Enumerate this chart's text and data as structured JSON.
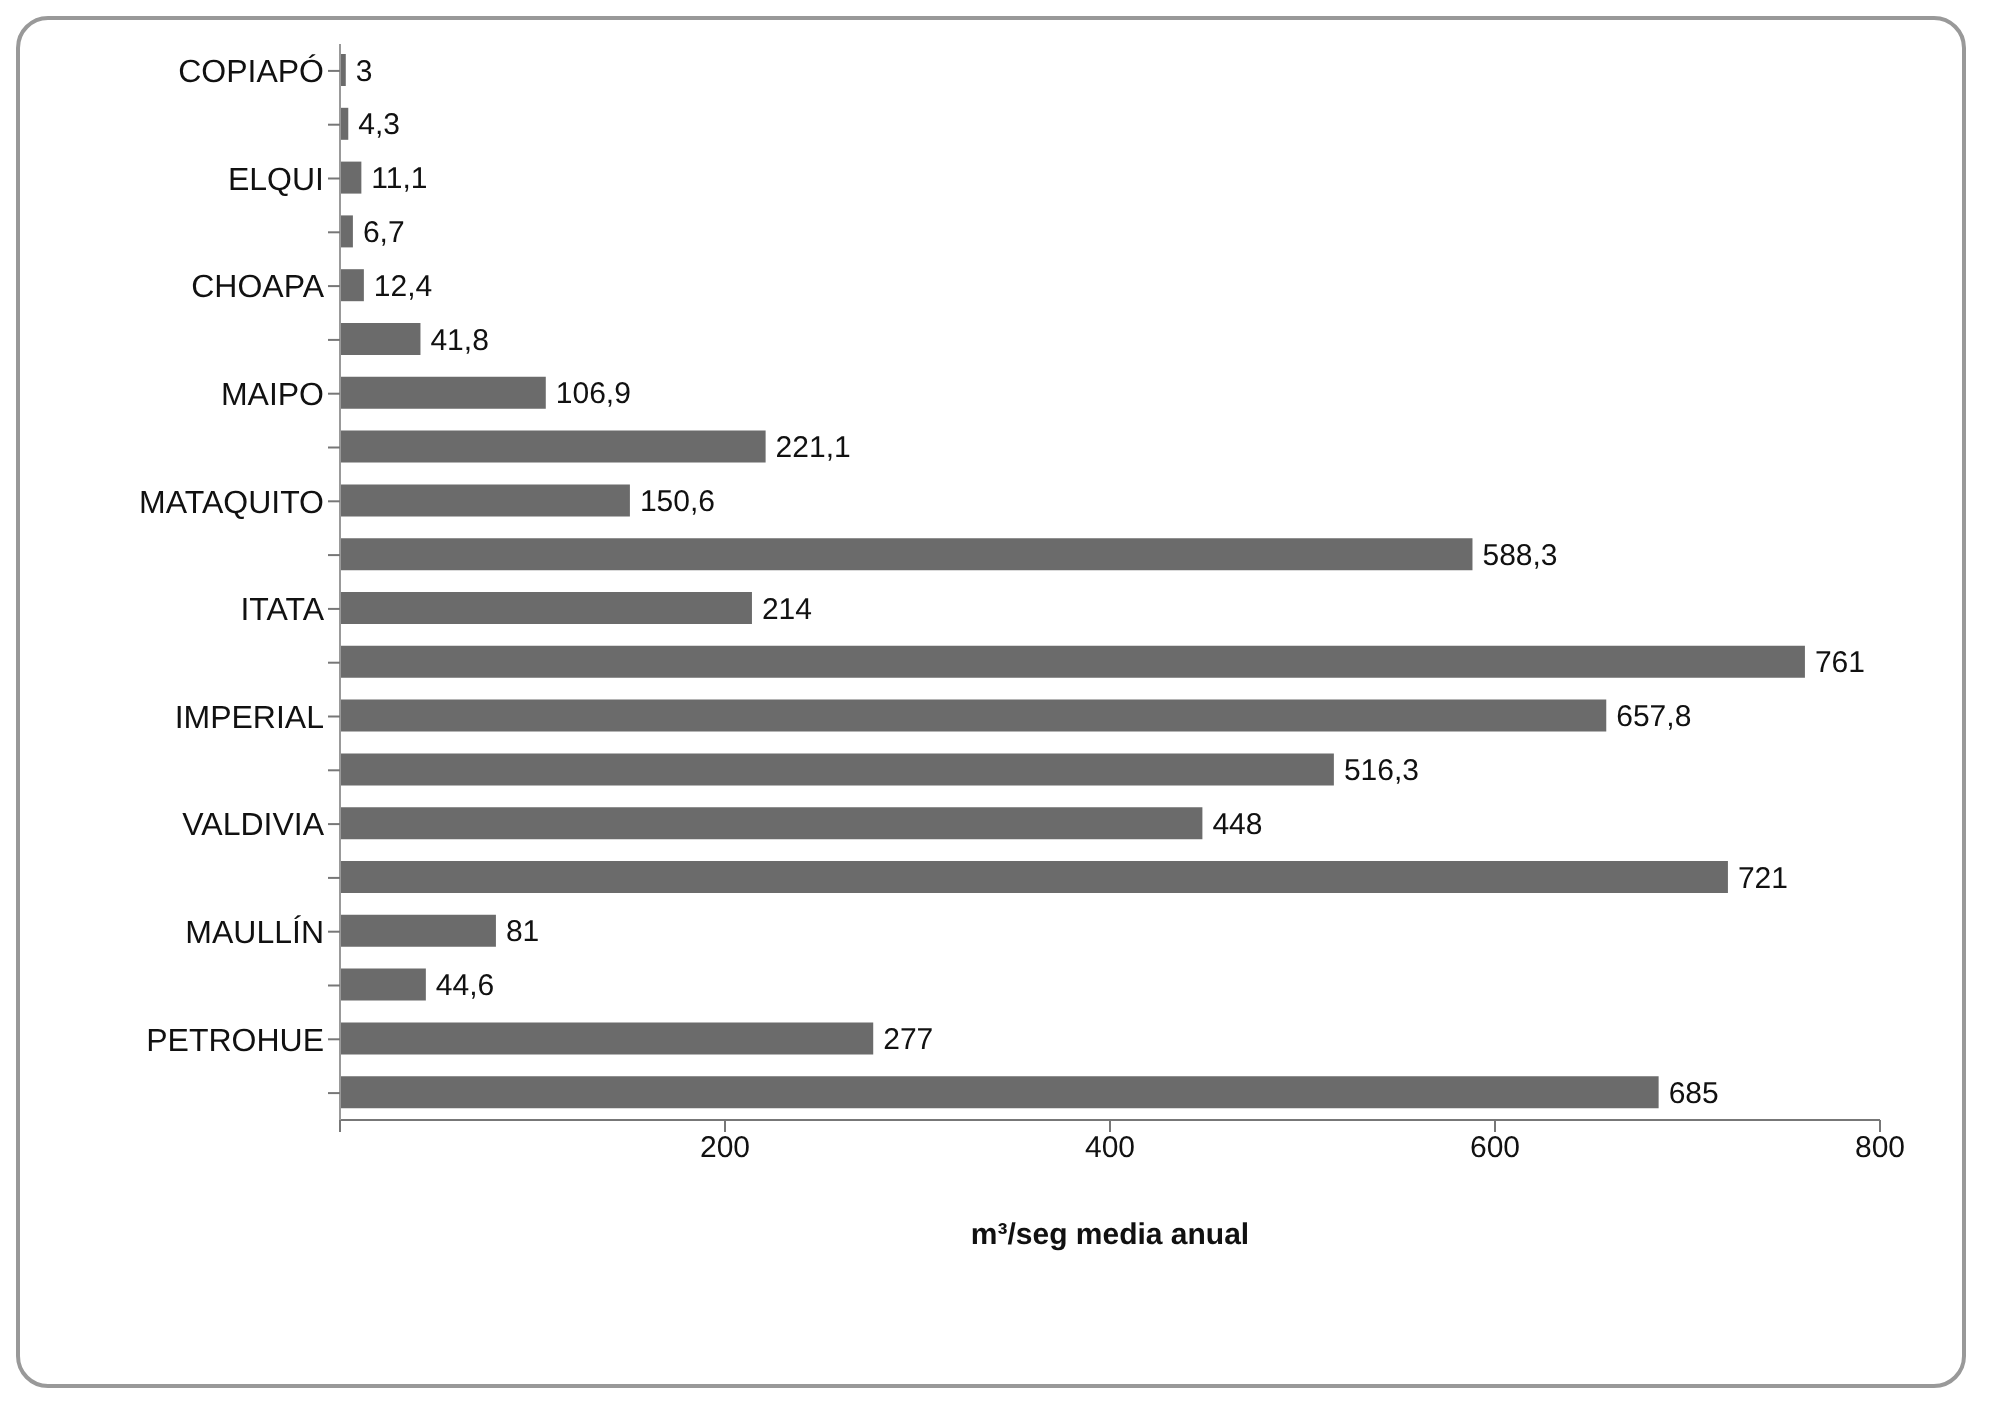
{
  "chart_data": {
    "type": "bar",
    "orientation": "horizontal",
    "xlabel": "m³/seg media anual",
    "categories": [
      "COPIAPÓ",
      null,
      "ELQUI",
      null,
      "CHOAPA",
      null,
      "MAIPO",
      null,
      "MATAQUITO",
      null,
      "ITATA",
      null,
      "IMPERIAL",
      null,
      "VALDIVIA",
      null,
      "MAULLÍN",
      null,
      "PETROHUE",
      null
    ],
    "values": [
      3,
      4.3,
      11.1,
      6.7,
      12.4,
      41.8,
      106.9,
      221.1,
      150.6,
      588.3,
      214,
      761,
      657.8,
      516.3,
      448,
      721,
      81,
      44.6,
      277,
      685
    ],
    "value_labels": [
      "3",
      "4,3",
      "11,1",
      "6,7",
      "12,4",
      "41,8",
      "106,9",
      "221,1",
      "150,6",
      "588,3",
      "214",
      "761",
      "657,8",
      "516,3",
      "448",
      "721",
      "81",
      "44,6",
      "277",
      "685"
    ],
    "color": "#6b6b6b",
    "xlim": [
      0,
      800
    ],
    "xticks": [
      {
        "value": 0,
        "label": null
      },
      200,
      400,
      600,
      800
    ],
    "grid": false,
    "legend": false
  }
}
